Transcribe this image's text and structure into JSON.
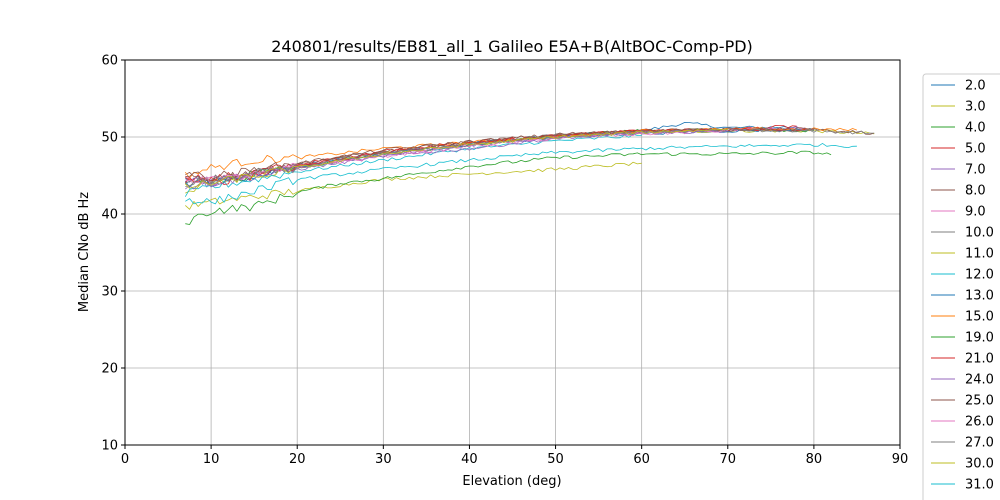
{
  "chart_data": {
    "type": "line",
    "title": "240801/results/EB81_all_1 Galileo E5A+B(AltBOC-Comp-PD)",
    "xlabel": "Elevation (deg)",
    "ylabel": "Median CNo dB Hz",
    "xlim": [
      0,
      90
    ],
    "ylim": [
      10,
      60
    ],
    "xticks": [
      "0",
      "10",
      "20",
      "30",
      "40",
      "50",
      "60",
      "70",
      "80",
      "90"
    ],
    "yticks": [
      "10",
      "20",
      "30",
      "40",
      "50",
      "60"
    ],
    "grid": true,
    "legend_position": "right, outside plot",
    "series": [
      {
        "name": "2.0",
        "color": "#1f77b4",
        "x": [
          7,
          10,
          20,
          30,
          40,
          50,
          60,
          65,
          70,
          78
        ],
        "y": [
          44.5,
          44.2,
          46.3,
          48.0,
          49.2,
          50.1,
          50.8,
          51.8,
          51.2,
          51.3
        ]
      },
      {
        "name": "3.0",
        "color": "#bcbd22",
        "x": [
          7,
          10,
          20,
          30,
          40,
          50,
          60,
          70,
          80,
          87
        ],
        "y": [
          43.0,
          44.0,
          46.0,
          48.0,
          49.0,
          50.0,
          50.6,
          50.8,
          50.8,
          50.4
        ]
      },
      {
        "name": "4.0",
        "color": "#2ca02c",
        "x": [
          7,
          10,
          20,
          30,
          40,
          50,
          60,
          70,
          80
        ],
        "y": [
          44.0,
          44.2,
          46.0,
          47.8,
          49.0,
          50.2,
          50.8,
          51.0,
          50.8
        ]
      },
      {
        "name": "5.0",
        "color": "#d62728",
        "x": [
          7,
          10,
          20,
          30,
          40,
          50,
          60,
          70,
          78
        ],
        "y": [
          45.0,
          44.5,
          46.4,
          48.2,
          49.3,
          50.2,
          50.8,
          51.0,
          51.4
        ]
      },
      {
        "name": "7.0",
        "color": "#9467bd",
        "x": [
          7,
          10,
          20,
          30,
          40,
          50,
          60,
          70,
          79
        ],
        "y": [
          44.2,
          44.0,
          46.0,
          47.6,
          48.9,
          50.0,
          50.5,
          50.9,
          51.2
        ]
      },
      {
        "name": "8.0",
        "color": "#8c564b",
        "x": [
          7,
          10,
          20,
          30,
          40,
          50,
          60,
          70,
          80,
          87
        ],
        "y": [
          45.0,
          44.5,
          46.5,
          48.2,
          49.4,
          50.3,
          50.8,
          51.0,
          51.0,
          50.5
        ]
      },
      {
        "name": "9.0",
        "color": "#e377c2",
        "x": [
          7,
          10,
          20,
          30,
          40,
          50,
          60,
          70,
          80
        ],
        "y": [
          44.5,
          44.3,
          46.2,
          47.8,
          49.0,
          50.0,
          50.6,
          51.0,
          51.0
        ]
      },
      {
        "name": "10.0",
        "color": "#7f7f7f",
        "x": [
          7,
          10,
          20,
          30,
          40,
          50,
          60,
          70,
          80,
          87
        ],
        "y": [
          44.0,
          44.5,
          46.2,
          48.0,
          49.2,
          50.2,
          50.7,
          51.0,
          50.8,
          50.5
        ]
      },
      {
        "name": "11.0",
        "color": "#bcbd22",
        "x": [
          7,
          10,
          20,
          30,
          40,
          50,
          60
        ],
        "y": [
          41.0,
          41.5,
          43.0,
          44.5,
          45.2,
          45.8,
          46.6
        ]
      },
      {
        "name": "12.0",
        "color": "#17becf",
        "x": [
          7,
          10,
          20,
          30,
          40,
          50,
          60
        ],
        "y": [
          42.5,
          43.5,
          45.5,
          47.0,
          48.5,
          49.5,
          50.2
        ]
      },
      {
        "name": "13.0",
        "color": "#1f77b4",
        "x": [
          7,
          10,
          20,
          30,
          40,
          50,
          60,
          70,
          80
        ],
        "y": [
          44.0,
          44.0,
          46.0,
          47.8,
          49.0,
          50.0,
          50.5,
          50.8,
          51.0
        ]
      },
      {
        "name": "15.0",
        "color": "#ff7f0e",
        "x": [
          7,
          10,
          15,
          20,
          30,
          40,
          50,
          60,
          70,
          80,
          85
        ],
        "y": [
          45.0,
          46.0,
          47.0,
          47.3,
          48.5,
          49.3,
          50.0,
          50.8,
          51.0,
          51.0,
          50.9
        ]
      },
      {
        "name": "19.0",
        "color": "#2ca02c",
        "x": [
          7,
          10,
          15,
          20,
          25,
          30,
          40,
          50,
          60,
          70,
          80,
          82
        ],
        "y": [
          38.9,
          40.4,
          41.0,
          42.8,
          44.0,
          44.6,
          46.2,
          47.3,
          47.8,
          47.8,
          48.0,
          47.7
        ]
      },
      {
        "name": "21.0",
        "color": "#d62728",
        "x": [
          7,
          10,
          20,
          30,
          40,
          50,
          60,
          70,
          79
        ],
        "y": [
          44.5,
          44.0,
          46.2,
          48.0,
          49.2,
          50.2,
          50.8,
          51.0,
          51.0
        ]
      },
      {
        "name": "24.0",
        "color": "#9467bd",
        "x": [
          7,
          10,
          20,
          30,
          40,
          50,
          60,
          70
        ],
        "y": [
          43.5,
          44.0,
          45.8,
          47.5,
          48.5,
          49.8,
          50.5,
          50.8
        ]
      },
      {
        "name": "25.0",
        "color": "#8c564b",
        "x": [
          7,
          10,
          20,
          30,
          40,
          50,
          60,
          70,
          80
        ],
        "y": [
          45.2,
          44.8,
          46.6,
          48.3,
          49.4,
          50.3,
          50.8,
          51.0,
          51.0
        ]
      },
      {
        "name": "26.0",
        "color": "#e377c2",
        "x": [
          7,
          10,
          20,
          30,
          40,
          50,
          60,
          70
        ],
        "y": [
          44.5,
          44.2,
          46.0,
          47.5,
          48.8,
          49.8,
          50.4,
          50.8
        ]
      },
      {
        "name": "27.0",
        "color": "#7f7f7f",
        "x": [
          7,
          10,
          20,
          30,
          40,
          50,
          60,
          70,
          80
        ],
        "y": [
          44.0,
          44.2,
          46.0,
          47.8,
          49.0,
          50.0,
          50.6,
          50.9,
          50.8
        ]
      },
      {
        "name": "30.0",
        "color": "#bcbd22",
        "x": [
          7,
          10,
          20,
          30,
          40,
          50,
          60,
          70
        ],
        "y": [
          43.5,
          44.0,
          46.0,
          47.8,
          49.0,
          50.0,
          50.6,
          51.0
        ]
      },
      {
        "name": "31.0",
        "color": "#17becf",
        "x": [
          7,
          10,
          15,
          20,
          30,
          40,
          50,
          60,
          70,
          80,
          85
        ],
        "y": [
          42.0,
          41.5,
          43.0,
          44.5,
          45.8,
          47.0,
          48.0,
          48.5,
          48.8,
          49.0,
          48.8
        ]
      }
    ]
  }
}
